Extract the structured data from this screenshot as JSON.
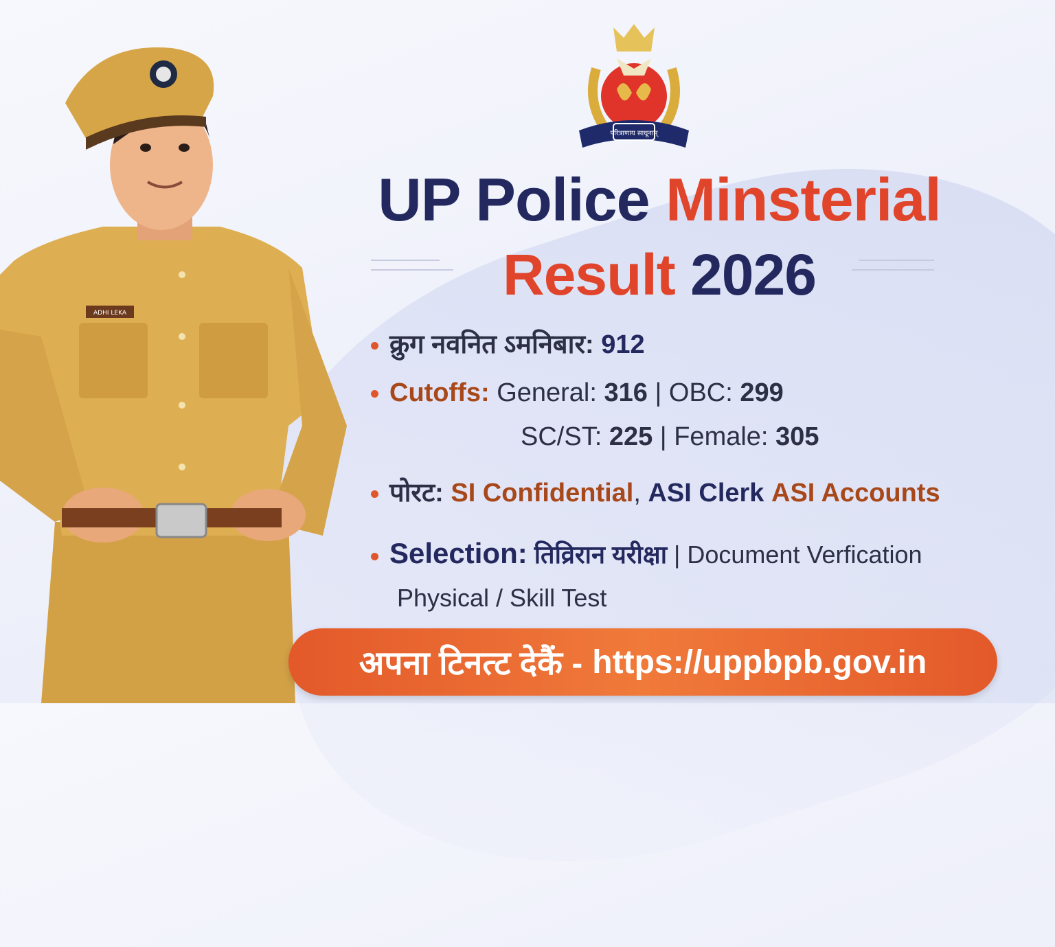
{
  "emblem": {
    "name": "up-police-emblem",
    "motto": "परित्राणाय साधूनाम्"
  },
  "title": {
    "line1_part1": "UP Police",
    "line1_part2": "Minsterial",
    "line2_part1": "Result",
    "line2_part2": "2026"
  },
  "officer": {
    "name_tag": "ADHI LEKA"
  },
  "details": {
    "total": {
      "label": "क्रुग नवनित ऽमनिबार:",
      "value": "912"
    },
    "cutoffs": {
      "label": "Cutoffs:",
      "general_label": "General:",
      "general": "316",
      "obc_label": "OBC:",
      "obc": "299",
      "scst_label": "SC/ST:",
      "scst": "225",
      "female_label": "Female:",
      "female": "305"
    },
    "posts": {
      "label": "पोरट:",
      "post1": "SI Confidential",
      "sep": ",",
      "post2": "ASI Clerk",
      "post3": "ASI Accounts"
    },
    "selection": {
      "label": "Selection:",
      "stage1": "तिव्रिरान यरीक्षा",
      "stage2": "Document Verfication",
      "stage3": "Physical / Skill Test"
    }
  },
  "cta": {
    "text": "अपना टिनत्ट देकैं -",
    "url": "https://uppbpb.gov.in"
  },
  "colors": {
    "navy": "#23285e",
    "accent": "#e0452b",
    "button": "#e8612a",
    "khaki": "#d9a94a"
  }
}
